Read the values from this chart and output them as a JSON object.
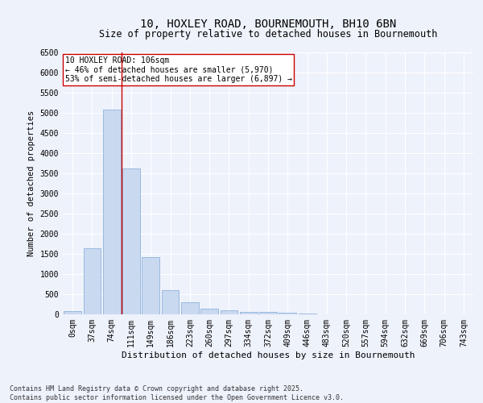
{
  "title1": "10, HOXLEY ROAD, BOURNEMOUTH, BH10 6BN",
  "title2": "Size of property relative to detached houses in Bournemouth",
  "xlabel": "Distribution of detached houses by size in Bournemouth",
  "ylabel": "Number of detached properties",
  "footer1": "Contains HM Land Registry data © Crown copyright and database right 2025.",
  "footer2": "Contains public sector information licensed under the Open Government Licence v3.0.",
  "annotation_line1": "10 HOXLEY ROAD: 106sqm",
  "annotation_line2": "← 46% of detached houses are smaller (5,970)",
  "annotation_line3": "53% of semi-detached houses are larger (6,897) →",
  "bar_color": "#c9d9f0",
  "bar_edge_color": "#7fa8d4",
  "vline_color": "#cc0000",
  "vline_x": 2.5,
  "categories": [
    "0sqm",
    "37sqm",
    "74sqm",
    "111sqm",
    "149sqm",
    "186sqm",
    "223sqm",
    "260sqm",
    "297sqm",
    "334sqm",
    "372sqm",
    "409sqm",
    "446sqm",
    "483sqm",
    "520sqm",
    "557sqm",
    "594sqm",
    "632sqm",
    "669sqm",
    "706sqm",
    "743sqm"
  ],
  "values": [
    75,
    1640,
    5090,
    3620,
    1430,
    610,
    305,
    145,
    100,
    70,
    55,
    35,
    20,
    0,
    0,
    0,
    0,
    0,
    0,
    0,
    0
  ],
  "ylim": [
    0,
    6500
  ],
  "yticks": [
    0,
    500,
    1000,
    1500,
    2000,
    2500,
    3000,
    3500,
    4000,
    4500,
    5000,
    5500,
    6000,
    6500
  ],
  "background_color": "#eef2fb",
  "grid_color": "#ffffff",
  "title1_fontsize": 10,
  "title2_fontsize": 8.5,
  "xlabel_fontsize": 8,
  "ylabel_fontsize": 7.5,
  "tick_fontsize": 7,
  "annotation_fontsize": 7,
  "footer_fontsize": 6
}
